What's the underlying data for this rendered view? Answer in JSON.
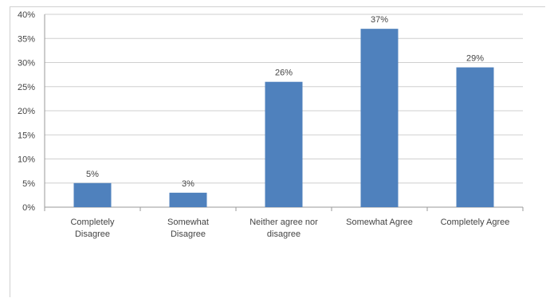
{
  "chart_data": {
    "type": "bar",
    "categories": [
      [
        "Completely",
        "Disagree"
      ],
      [
        "Somewhat",
        "Disagree"
      ],
      [
        "Neither agree nor",
        "disagree"
      ],
      [
        "Somewhat Agree"
      ],
      [
        "Completely Agree"
      ]
    ],
    "values": [
      5,
      3,
      26,
      37,
      29
    ],
    "data_labels": [
      "5%",
      "3%",
      "26%",
      "37%",
      "29%"
    ],
    "ylim": [
      0,
      40
    ],
    "y_ticks": [
      0,
      5,
      10,
      15,
      20,
      25,
      30,
      35,
      40
    ],
    "y_tick_labels": [
      "0%",
      "5%",
      "10%",
      "15%",
      "20%",
      "25%",
      "30%",
      "35%",
      "40%"
    ],
    "grid": true,
    "legend": "none",
    "title": "",
    "xlabel": "",
    "ylabel": "",
    "bar_color": "#4f81bd",
    "grid_color": "#cfcfcf"
  }
}
